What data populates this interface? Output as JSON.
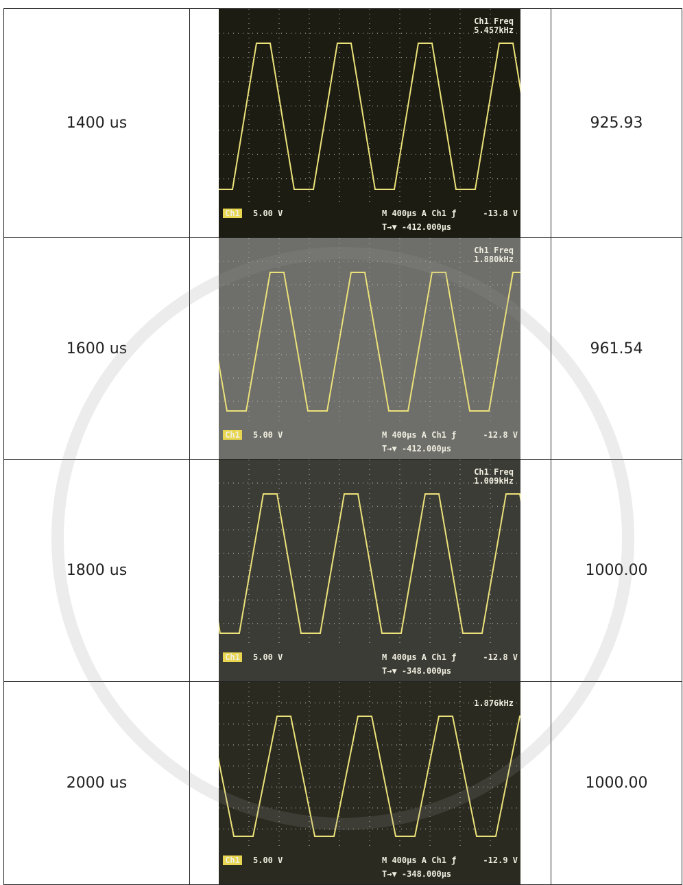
{
  "table": {
    "rows": [
      {
        "label": "1400 us",
        "scope": {
          "freq_title": "Ch1 Freq",
          "freq": "5.457kHz",
          "channel": "Ch1",
          "volts": "5.00 V",
          "timebase": "M 400µs  A  Ch1  ƒ",
          "trigger": "-13.8 V",
          "offset": "T→▼ -412.000µs"
        },
        "value": "925.93"
      },
      {
        "label": "1600 us",
        "scope": {
          "freq_title": "Ch1 Freq",
          "freq": "1.880kHz",
          "channel": "Ch1",
          "volts": "5.00 V",
          "timebase": "M 400µs  A  Ch1  ƒ",
          "trigger": "-12.8 V",
          "offset": "T→▼ -412.000µs"
        },
        "value": "961.54"
      },
      {
        "label": "1800 us",
        "scope": {
          "freq_title": "Ch1 Freq",
          "freq": "1.009kHz",
          "channel": "Ch1",
          "volts": "5.00 V",
          "timebase": "M 400µs  A  Ch1  ƒ",
          "trigger": "-12.8 V",
          "offset": "T→▼ -348.000µs"
        },
        "value": "1000.00"
      },
      {
        "label": "2000 us",
        "scope": {
          "freq": "1.876kHz",
          "channel": "Ch1",
          "volts": "5.00 V",
          "timebase": "M 400µs  A  Ch1  ƒ",
          "trigger": "-12.9 V",
          "offset": "T→▼ -348.000µs"
        },
        "value": "1000.00"
      }
    ]
  }
}
